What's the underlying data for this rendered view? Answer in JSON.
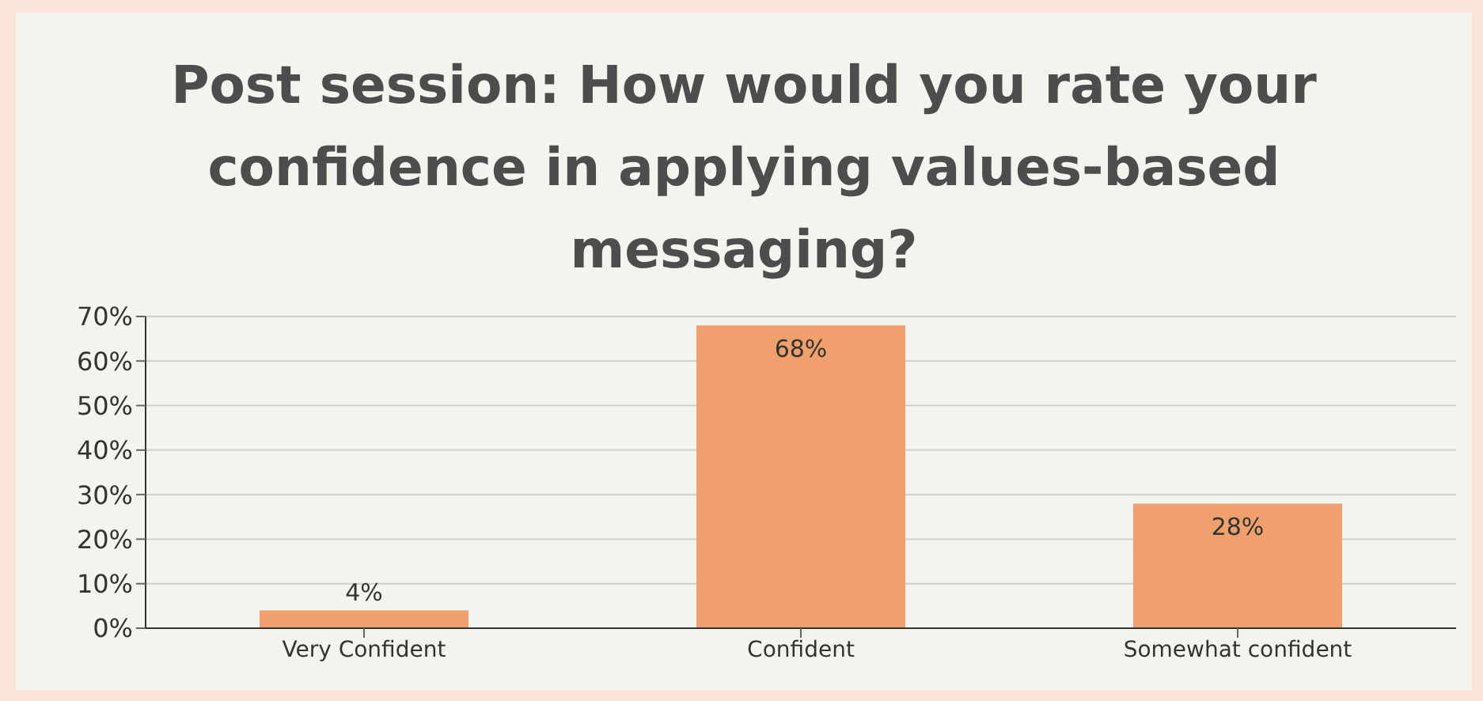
{
  "chart_data": {
    "type": "bar",
    "title": "Post session: How would you rate your confidence in applying values-based messaging?",
    "categories": [
      "Very Confident",
      "Confident",
      "Somewhat confident"
    ],
    "values": [
      4,
      68,
      28
    ],
    "color": "#f0a06c",
    "value_labels": [
      "4%",
      "68%",
      "28%"
    ],
    "ylim": [
      0,
      70
    ],
    "yticks": [
      {
        "value": 0,
        "label": "0%"
      },
      {
        "value": 10,
        "label": "10%"
      },
      {
        "value": 20,
        "label": "20%"
      },
      {
        "value": 30,
        "label": "30%"
      },
      {
        "value": 40,
        "label": "40%"
      },
      {
        "value": 50,
        "label": "50%"
      },
      {
        "value": 60,
        "label": "60%"
      },
      {
        "value": 70,
        "label": "70%"
      }
    ],
    "grid": "y",
    "legend": false
  }
}
